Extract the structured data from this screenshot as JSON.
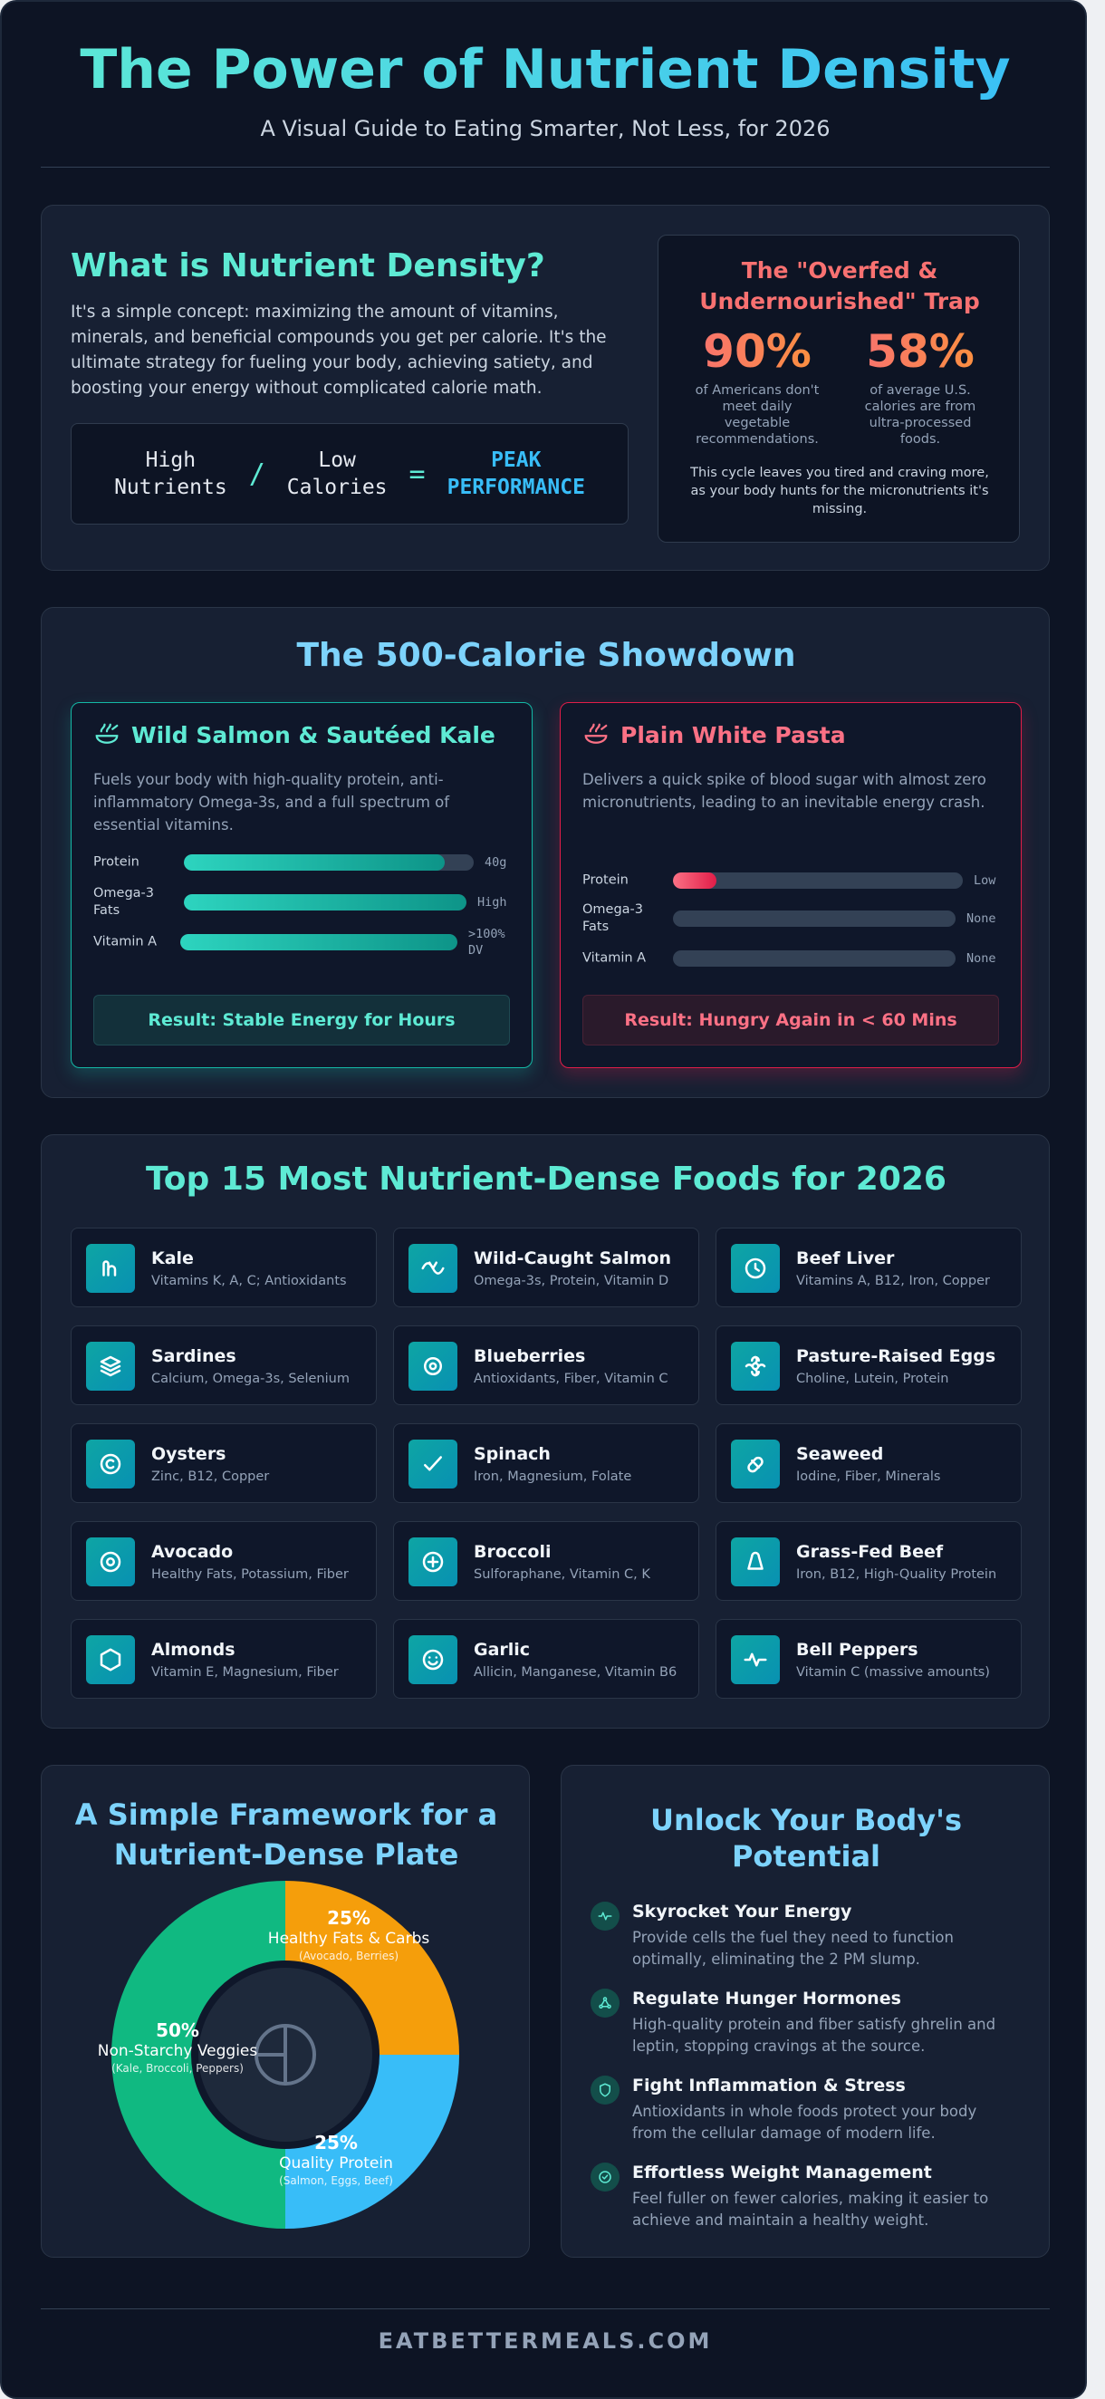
{
  "header": {
    "title": "The Power of Nutrient Density",
    "subtitle": "A Visual Guide to Eating Smarter, Not Less, for 2026"
  },
  "intro": {
    "title": "What is Nutrient Density?",
    "description": "It's a simple concept: maximizing the amount of vitamins, minerals, and beneficial compounds you get per calorie. It's the ultimate strategy for fueling your body, achieving satiety, and boosting your energy without complicated calorie math.",
    "formula": {
      "term1_line1": "High",
      "term1_line2": "Nutrients",
      "divide": "/",
      "term2_line1": "Low",
      "term2_line2": "Calories",
      "equals": "=",
      "result_line1": "PEAK",
      "result_line2": "PERFORMANCE"
    },
    "trap": {
      "title": "The \"Overfed & Undernourished\" Trap",
      "stat1_value": "90%",
      "stat1_label": "of Americans don't meet daily vegetable recommendations.",
      "stat2_value": "58%",
      "stat2_label": "of average U.S. calories are from ultra-processed foods.",
      "note": "This cycle leaves you tired and craving more, as your body hunts for the micronutrients it's missing."
    }
  },
  "showdown": {
    "title": "The 500-Calorie Showdown",
    "good": {
      "name": "Wild Salmon & Sautéed Kale",
      "description": "Fuels your body with high-quality protein, anti-inflammatory Omega-3s, and a full spectrum of essential vitamins.",
      "bars": [
        {
          "label": "Protein",
          "value": "40g",
          "fill": 0.9
        },
        {
          "label": "Omega-3 Fats",
          "value": "High",
          "fill": 1.0
        },
        {
          "label": "Vitamin A",
          "value": ">100% DV",
          "fill": 1.0
        }
      ],
      "result": "Result: Stable Energy for Hours"
    },
    "bad": {
      "name": "Plain White Pasta",
      "description": "Delivers a quick spike of blood sugar with almost zero micronutrients, leading to an inevitable energy crash.",
      "bars": [
        {
          "label": "Protein",
          "value": "Low",
          "fill": 0.15
        },
        {
          "label": "Omega-3 Fats",
          "value": "None",
          "fill": 0
        },
        {
          "label": "Vitamin A",
          "value": "None",
          "fill": 0
        }
      ],
      "result": "Result: Hungry Again in < 60 Mins"
    }
  },
  "foods": {
    "title": "Top 15 Most Nutrient-Dense Foods for 2026",
    "items": [
      {
        "name": "Kale",
        "nutrients": "Vitamins K, A, C; Antioxidants",
        "icon": "leaf-icon"
      },
      {
        "name": "Wild-Caught Salmon",
        "nutrients": "Omega-3s, Protein, Vitamin D",
        "icon": "fish-icon"
      },
      {
        "name": "Beef Liver",
        "nutrients": "Vitamins A, B12, Iron, Copper",
        "icon": "clock-icon"
      },
      {
        "name": "Sardines",
        "nutrients": "Calcium, Omega-3s, Selenium",
        "icon": "layers-icon"
      },
      {
        "name": "Blueberries",
        "nutrients": "Antioxidants, Fiber, Vitamin C",
        "icon": "berry-icon"
      },
      {
        "name": "Pasture-Raised Eggs",
        "nutrients": "Choline, Lutein, Protein",
        "icon": "flower-icon"
      },
      {
        "name": "Oysters",
        "nutrients": "Zinc, B12, Copper",
        "icon": "copyright-icon"
      },
      {
        "name": "Spinach",
        "nutrients": "Iron, Magnesium, Folate",
        "icon": "check-icon"
      },
      {
        "name": "Seaweed",
        "nutrients": "Iodine, Fiber, Minerals",
        "icon": "pill-icon"
      },
      {
        "name": "Avocado",
        "nutrients": "Healthy Fats, Potassium, Fiber",
        "icon": "target-icon"
      },
      {
        "name": "Broccoli",
        "nutrients": "Sulforaphane, Vitamin C, K",
        "icon": "plus-circle-icon"
      },
      {
        "name": "Grass-Fed Beef",
        "nutrients": "Iron, B12, High-Quality Protein",
        "icon": "bell-shape-icon"
      },
      {
        "name": "Almonds",
        "nutrients": "Vitamin E, Magnesium, Fiber",
        "icon": "hexagon-icon"
      },
      {
        "name": "Garlic",
        "nutrients": "Allicin, Manganese, Vitamin B6",
        "icon": "smile-icon"
      },
      {
        "name": "Bell Peppers",
        "nutrients": "Vitamin C (massive amounts)",
        "icon": "pulse-icon"
      }
    ]
  },
  "plate": {
    "title_line1": "A Simple Framework for a",
    "title_line2": "Nutrient-Dense Plate",
    "chart_data": {
      "type": "pie",
      "categories": [
        "Healthy Fats & Carbs",
        "Quality Protein",
        "Non-Starchy Veggies"
      ],
      "values": [
        25,
        25,
        50
      ],
      "labels": [
        "25%",
        "25%",
        "50%"
      ],
      "examples": [
        "(Avocado, Berries)",
        "(Salmon, Eggs, Beef)",
        "(Kale, Broccoli, Peppers)"
      ],
      "colors": [
        "#f59e0b",
        "#38bdf8",
        "#10b981"
      ]
    }
  },
  "benefits": {
    "title_line1": "Unlock Your Body's",
    "title_line2": "Potential",
    "items": [
      {
        "title": "Skyrocket Your Energy",
        "description": "Provide cells the fuel they need to function optimally, eliminating the 2 PM slump.",
        "icon": "pulse-icon"
      },
      {
        "title": "Regulate Hunger Hormones",
        "description": "High-quality protein and fiber satisfy ghrelin and leptin, stopping cravings at the source.",
        "icon": "network-icon"
      },
      {
        "title": "Fight Inflammation & Stress",
        "description": "Antioxidants in whole foods protect your body from the cellular damage of modern life.",
        "icon": "shield-icon"
      },
      {
        "title": "Effortless Weight Management",
        "description": "Feel fuller on fewer calories, making it easier to achieve and maintain a healthy weight.",
        "icon": "check-badge-icon"
      }
    ]
  },
  "footer": {
    "site": "EATBETTERMEALS.COM"
  }
}
